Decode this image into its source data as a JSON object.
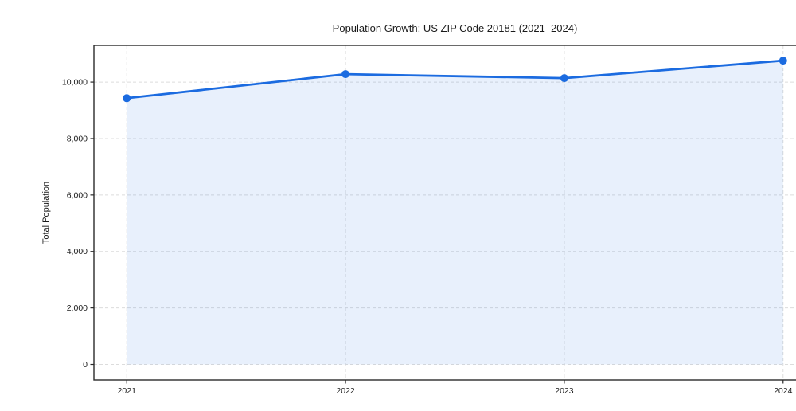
{
  "chart_data": {
    "type": "line",
    "title": "Population Growth: US ZIP Code 20181 (2021–2024)",
    "xlabel": "",
    "ylabel": "Total Population",
    "x": [
      2021,
      2022,
      2023,
      2024
    ],
    "xtick_labels": [
      "2021",
      "2022",
      "2023",
      "2024"
    ],
    "series": [
      {
        "name": "Total Population",
        "values": [
          9430,
          10280,
          10140,
          10760
        ]
      }
    ],
    "yticks": [
      0,
      2000,
      4000,
      6000,
      8000,
      10000
    ],
    "ytick_labels": [
      "0",
      "2,000",
      "4,000",
      "6,000",
      "8,000",
      "10,000"
    ],
    "xlim": [
      2020.85,
      2024.15
    ],
    "ylim": [
      -550,
      11300
    ],
    "grid": true,
    "grid_style": "dashed",
    "legend": "none",
    "area_fill": true,
    "marker": "circle",
    "colors": {
      "line": "#1b6be0",
      "marker": "#1b6be0",
      "fill": "rgba(27,107,224,0.10)",
      "grid": "#dcdcdc",
      "spine": "#2a2a2a",
      "text": "#1a1a1a"
    }
  }
}
